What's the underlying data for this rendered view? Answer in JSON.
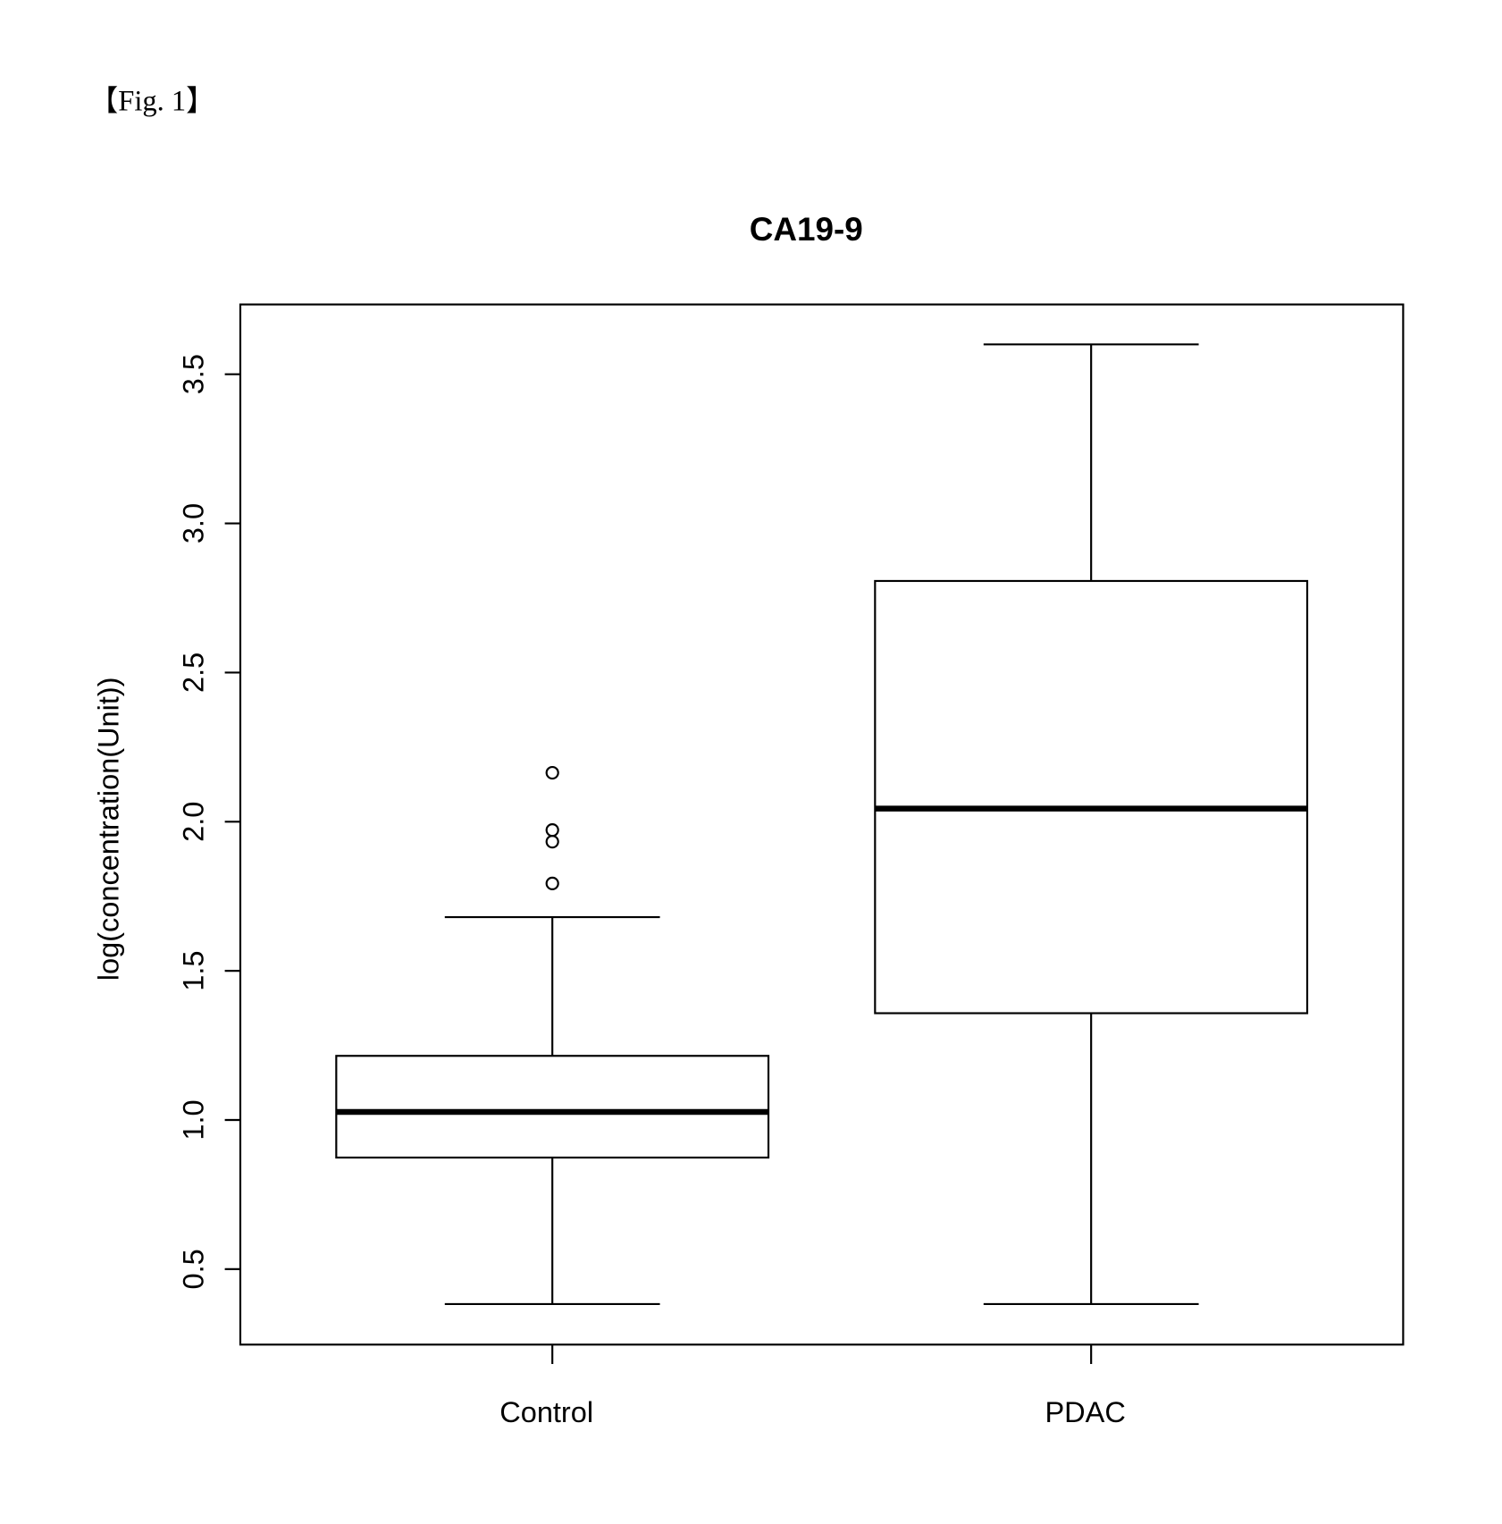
{
  "header": "【Fig. 1】",
  "chart_data": {
    "type": "box",
    "title": "CA19-9",
    "y_label": "log(concentration(Unit))",
    "categories": [
      "Control",
      "PDAC"
    ],
    "boxes": [
      {
        "whisker_low": 0.383,
        "q1": 0.874,
        "median": 1.027,
        "q3": 1.215,
        "whisker_high": 1.68,
        "outliers": [
          2.164,
          1.972,
          1.933,
          1.793
        ]
      },
      {
        "whisker_low": 0.383,
        "q1": 1.358,
        "median": 2.044,
        "q3": 2.807,
        "whisker_high": 3.6,
        "outliers": []
      }
    ],
    "color": "#000000",
    "ylim": [
      0.247,
      3.734
    ],
    "yticks": [
      {
        "value": 0.5,
        "label": "0.5"
      },
      {
        "value": 1,
        "label": "1.0"
      },
      {
        "value": 1.5,
        "label": "1.5"
      },
      {
        "value": 2,
        "label": "2.0"
      },
      {
        "value": 2.5,
        "label": "2.5"
      },
      {
        "value": 3,
        "label": "3.0"
      },
      {
        "value": 3.5,
        "label": "3.5"
      }
    ],
    "grid": false
  }
}
